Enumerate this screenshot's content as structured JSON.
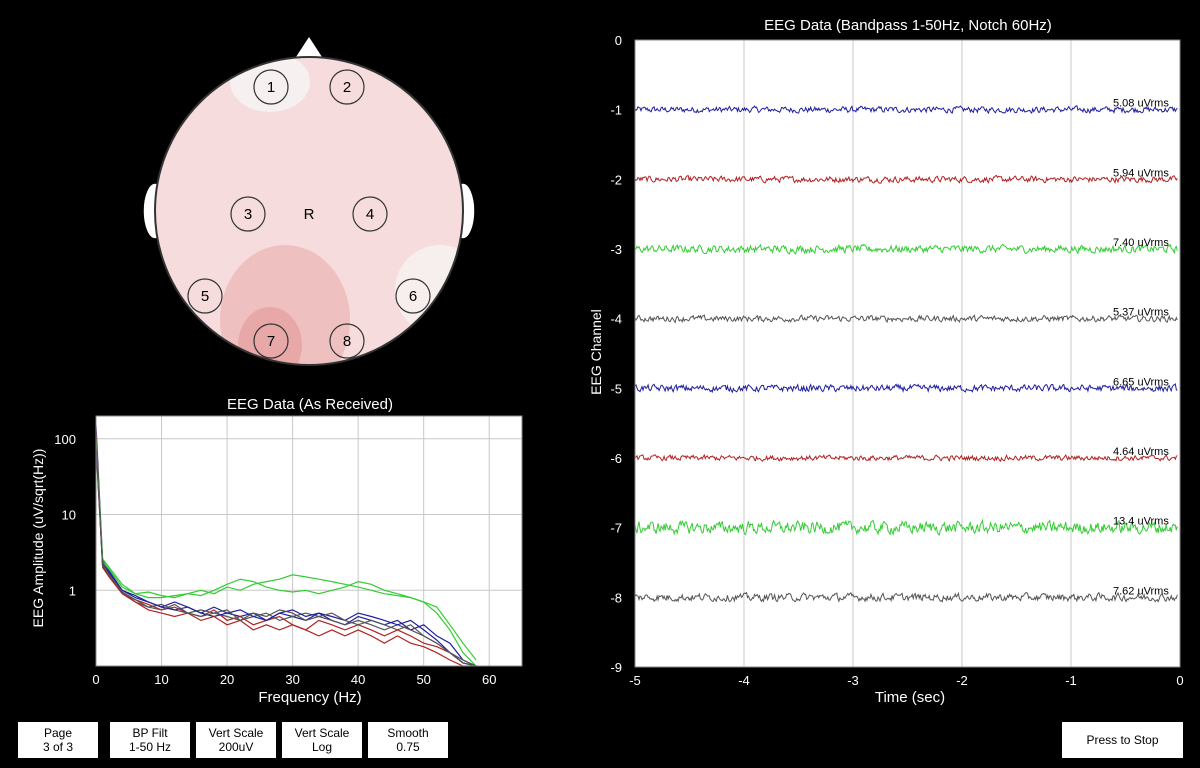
{
  "headmap": {
    "channels": [
      "1",
      "2",
      "3",
      "4",
      "5",
      "6",
      "7",
      "8"
    ],
    "reference_label": "R"
  },
  "spectrum": {
    "title": "EEG Data (As Received)",
    "xlabel": "Frequency (Hz)",
    "ylabel": "EEG Amplitude (uV/sqrt(Hz))",
    "x_ticks": [
      "0",
      "10",
      "20",
      "30",
      "40",
      "50",
      "60"
    ],
    "y_ticks": [
      "100",
      "10",
      "1"
    ]
  },
  "timeseries": {
    "title": "EEG Data (Bandpass 1-50Hz, Notch 60Hz)",
    "xlabel": "Time (sec)",
    "ylabel": "EEG Channel",
    "x_ticks": [
      "-5",
      "-4",
      "-3",
      "-2",
      "-1",
      "0"
    ],
    "y_ticks": [
      "0",
      "-1",
      "-2",
      "-3",
      "-4",
      "-5",
      "-6",
      "-7",
      "-8",
      "-9"
    ],
    "rms_labels": [
      "5.08 uVrms",
      "5.94 uVrms",
      "7.40 uVrms",
      "5.37 uVrms",
      "6.65 uVrms",
      "4.64 uVrms",
      "13.4 uVrms",
      "7.62 uVrms"
    ]
  },
  "chart_data": [
    {
      "type": "line",
      "title": "EEG Data (As Received)",
      "xlabel": "Frequency (Hz)",
      "ylabel": "EEG Amplitude (uV/sqrt(Hz))",
      "xlim": [
        0,
        65
      ],
      "ylim": [
        0.1,
        200
      ],
      "yscale": "log",
      "series": [
        {
          "name": "ch1",
          "color": "#1f1fa0",
          "x": [
            0,
            1,
            2,
            4,
            6,
            8,
            10,
            12,
            14,
            16,
            18,
            20,
            22,
            24,
            26,
            28,
            30,
            32,
            34,
            36,
            38,
            40,
            42,
            44,
            46,
            48,
            50,
            52,
            54,
            56,
            58
          ],
          "y": [
            150,
            2.5,
            1.8,
            1.0,
            0.8,
            0.7,
            0.6,
            0.7,
            0.6,
            0.5,
            0.6,
            0.5,
            0.45,
            0.5,
            0.4,
            0.5,
            0.45,
            0.4,
            0.5,
            0.4,
            0.35,
            0.45,
            0.4,
            0.35,
            0.4,
            0.3,
            0.35,
            0.25,
            0.2,
            0.12,
            0.1
          ]
        },
        {
          "name": "ch2",
          "color": "#b22222",
          "x": [
            0,
            1,
            2,
            4,
            6,
            8,
            10,
            12,
            14,
            16,
            18,
            20,
            22,
            24,
            26,
            28,
            30,
            32,
            34,
            36,
            38,
            40,
            42,
            44,
            46,
            48,
            50,
            52,
            54,
            56,
            58
          ],
          "y": [
            120,
            2.2,
            1.6,
            0.9,
            0.75,
            0.65,
            0.55,
            0.6,
            0.5,
            0.45,
            0.55,
            0.4,
            0.45,
            0.35,
            0.4,
            0.45,
            0.35,
            0.3,
            0.4,
            0.35,
            0.3,
            0.35,
            0.3,
            0.25,
            0.3,
            0.25,
            0.2,
            0.18,
            0.15,
            0.11,
            0.1
          ]
        },
        {
          "name": "ch3",
          "color": "#33cc33",
          "x": [
            0,
            1,
            2,
            4,
            6,
            8,
            10,
            12,
            14,
            16,
            18,
            20,
            22,
            24,
            26,
            28,
            30,
            32,
            34,
            36,
            38,
            40,
            42,
            44,
            46,
            48,
            50,
            52,
            54,
            56,
            58
          ],
          "y": [
            100,
            2.4,
            1.9,
            1.1,
            0.9,
            0.8,
            0.8,
            0.85,
            0.9,
            0.85,
            1.0,
            1.2,
            1.4,
            1.3,
            1.1,
            1.0,
            0.95,
            1.0,
            0.9,
            1.0,
            1.1,
            1.3,
            1.2,
            1.0,
            0.9,
            0.8,
            0.7,
            0.5,
            0.3,
            0.15,
            0.1
          ]
        },
        {
          "name": "ch4",
          "color": "#555555",
          "x": [
            0,
            1,
            2,
            4,
            6,
            8,
            10,
            12,
            14,
            16,
            18,
            20,
            22,
            24,
            26,
            28,
            30,
            32,
            34,
            36,
            38,
            40,
            42,
            44,
            46,
            48,
            50,
            52,
            54,
            56,
            58
          ],
          "y": [
            110,
            2.0,
            1.5,
            0.95,
            0.7,
            0.6,
            0.65,
            0.55,
            0.5,
            0.55,
            0.5,
            0.45,
            0.4,
            0.45,
            0.5,
            0.4,
            0.45,
            0.5,
            0.45,
            0.4,
            0.35,
            0.4,
            0.35,
            0.3,
            0.35,
            0.3,
            0.25,
            0.2,
            0.15,
            0.12,
            0.1
          ]
        },
        {
          "name": "ch5",
          "color": "#1f1fa0",
          "x": [
            0,
            1,
            2,
            4,
            6,
            8,
            10,
            12,
            14,
            16,
            18,
            20,
            22,
            24,
            26,
            28,
            30,
            32,
            34,
            36,
            38,
            40,
            42,
            44,
            46,
            48,
            50,
            52,
            54,
            56,
            58
          ],
          "y": [
            90,
            2.3,
            1.7,
            1.0,
            0.85,
            0.7,
            0.6,
            0.55,
            0.6,
            0.5,
            0.45,
            0.5,
            0.55,
            0.45,
            0.4,
            0.5,
            0.55,
            0.45,
            0.5,
            0.45,
            0.4,
            0.5,
            0.45,
            0.4,
            0.35,
            0.4,
            0.3,
            0.22,
            0.15,
            0.11,
            0.1
          ]
        },
        {
          "name": "ch6",
          "color": "#b22222",
          "x": [
            0,
            1,
            2,
            4,
            6,
            8,
            10,
            12,
            14,
            16,
            18,
            20,
            22,
            24,
            26,
            28,
            30,
            32,
            34,
            36,
            38,
            40,
            42,
            44,
            46,
            48,
            50,
            52,
            54,
            56,
            58
          ],
          "y": [
            80,
            2.1,
            1.5,
            0.9,
            0.7,
            0.55,
            0.5,
            0.45,
            0.5,
            0.4,
            0.45,
            0.35,
            0.4,
            0.3,
            0.35,
            0.3,
            0.35,
            0.3,
            0.25,
            0.3,
            0.25,
            0.3,
            0.25,
            0.2,
            0.25,
            0.2,
            0.18,
            0.15,
            0.12,
            0.1,
            0.1
          ]
        },
        {
          "name": "ch7",
          "color": "#33cc33",
          "x": [
            0,
            1,
            2,
            4,
            6,
            8,
            10,
            12,
            14,
            16,
            18,
            20,
            22,
            24,
            26,
            28,
            30,
            32,
            34,
            36,
            38,
            40,
            42,
            44,
            46,
            48,
            50,
            52,
            54,
            56,
            58
          ],
          "y": [
            95,
            2.6,
            2.0,
            1.2,
            0.9,
            0.95,
            0.85,
            0.8,
            0.9,
            1.0,
            0.9,
            1.1,
            1.0,
            1.2,
            1.3,
            1.4,
            1.6,
            1.5,
            1.4,
            1.3,
            1.2,
            1.1,
            1.0,
            0.9,
            0.85,
            0.8,
            0.7,
            0.6,
            0.35,
            0.2,
            0.12
          ]
        },
        {
          "name": "ch8",
          "color": "#555555",
          "x": [
            0,
            1,
            2,
            4,
            6,
            8,
            10,
            12,
            14,
            16,
            18,
            20,
            22,
            24,
            26,
            28,
            30,
            32,
            34,
            36,
            38,
            40,
            42,
            44,
            46,
            48,
            50,
            52,
            54,
            56,
            58
          ],
          "y": [
            85,
            2.2,
            1.6,
            0.95,
            0.75,
            0.6,
            0.55,
            0.65,
            0.5,
            0.45,
            0.5,
            0.55,
            0.4,
            0.5,
            0.45,
            0.55,
            0.5,
            0.4,
            0.45,
            0.5,
            0.4,
            0.35,
            0.4,
            0.35,
            0.3,
            0.35,
            0.25,
            0.2,
            0.15,
            0.11,
            0.1
          ]
        }
      ]
    },
    {
      "type": "line",
      "title": "EEG Data (Bandpass 1-50Hz, Notch 60Hz)",
      "xlabel": "Time (sec)",
      "ylabel": "EEG Channel",
      "xlim": [
        -5,
        0
      ],
      "ylim": [
        -9,
        0
      ],
      "series": [
        {
          "name": "ch1",
          "color": "#1f1fa0",
          "offset": -1,
          "amplitude": 0.08
        },
        {
          "name": "ch2",
          "color": "#b22222",
          "offset": -2,
          "amplitude": 0.08
        },
        {
          "name": "ch3",
          "color": "#33cc33",
          "offset": -3,
          "amplitude": 0.1
        },
        {
          "name": "ch4",
          "color": "#555555",
          "offset": -4,
          "amplitude": 0.08
        },
        {
          "name": "ch5",
          "color": "#1f1fa0",
          "offset": -5,
          "amplitude": 0.09
        },
        {
          "name": "ch6",
          "color": "#b22222",
          "offset": -6,
          "amplitude": 0.07
        },
        {
          "name": "ch7",
          "color": "#33cc33",
          "offset": -7,
          "amplitude": 0.16
        },
        {
          "name": "ch8",
          "color": "#555555",
          "offset": -8,
          "amplitude": 0.1
        }
      ]
    }
  ],
  "buttons": {
    "page": {
      "line1": "Page",
      "line2": "3 of 3"
    },
    "bp_filt": {
      "line1": "BP Filt",
      "line2": "1-50 Hz"
    },
    "vert_scale": {
      "line1": "Vert Scale",
      "line2": "200uV"
    },
    "vert_scale_type": {
      "line1": "Vert Scale",
      "line2": "Log"
    },
    "smooth": {
      "line1": "Smooth",
      "line2": "0.75"
    },
    "stop": {
      "label": "Press to Stop"
    }
  }
}
